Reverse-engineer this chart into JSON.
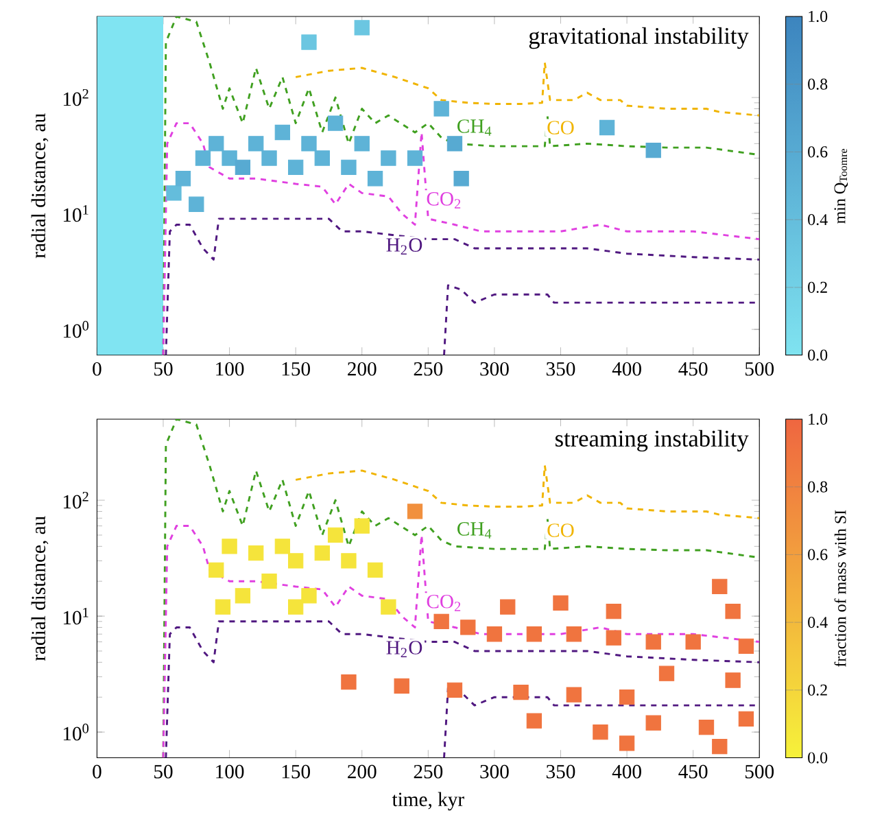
{
  "chart_data": [
    {
      "type": "line",
      "title": "gravitational instability",
      "ylabel": "radial distance, au",
      "clabel": "min Q$_{Toomre}$",
      "log": "y",
      "line_style": "dashed",
      "marker": "none",
      "xlim": [
        0,
        500
      ],
      "xticks": [
        0,
        50,
        100,
        150,
        200,
        250,
        300,
        350,
        400,
        450,
        500
      ],
      "ylim": [
        0.6,
        500
      ],
      "yticks": [
        {
          "value": 1,
          "label": "10$^{0}$"
        },
        {
          "value": 10,
          "label": "10$^{1}$"
        },
        {
          "value": 100,
          "label": "10$^{2}$"
        }
      ],
      "clim": [
        0,
        1
      ],
      "cticks": [
        {
          "value": 0,
          "label": "0.0"
        },
        {
          "value": 0.2,
          "label": "0.2"
        },
        {
          "value": 0.4,
          "label": "0.4"
        },
        {
          "value": 0.6,
          "label": "0.6"
        },
        {
          "value": 0.8,
          "label": "0.8"
        },
        {
          "value": 1,
          "label": "1.0"
        }
      ],
      "bands": [
        {
          "axis": "x",
          "from": 0,
          "to": 50,
          "color": "#80e4f2"
        }
      ],
      "series": [
        {
          "type": "scatter",
          "marker": "square",
          "x": [
            58,
            65,
            75,
            80,
            90,
            100,
            110,
            120,
            130,
            140,
            150,
            160,
            170,
            180,
            190,
            200,
            210,
            220,
            160,
            200,
            240,
            260,
            270,
            275,
            420,
            385
          ],
          "values": [
            15,
            20,
            12,
            30,
            40,
            30,
            25,
            40,
            30,
            50,
            25,
            40,
            30,
            60,
            25,
            40,
            20,
            30,
            300,
            400,
            30,
            80,
            40,
            20,
            35,
            55
          ],
          "cvalues": [
            0.4,
            0.5,
            0.5,
            0.5,
            0.5,
            0.5,
            0.6,
            0.5,
            0.5,
            0.5,
            0.5,
            0.5,
            0.5,
            0.5,
            0.5,
            0.5,
            0.5,
            0.5,
            0.3,
            0.3,
            0.5,
            0.5,
            0.6,
            0.6,
            0.6,
            0.5
          ],
          "colors": [
            "#64bddc",
            "#5eb3d7",
            "#5eb3d7",
            "#5eb3d7",
            "#5eb3d7",
            "#5eb3d7",
            "#57aad2",
            "#5eb3d7",
            "#5eb3d7",
            "#5eb3d7",
            "#5eb3d7",
            "#5eb3d7",
            "#5eb3d7",
            "#5eb3d7",
            "#5eb3d7",
            "#5eb3d7",
            "#5eb3d7",
            "#5eb3d7",
            "#6bc6e1",
            "#6bc6e1",
            "#5eb3d7",
            "#5eb3d7",
            "#57aad2",
            "#57aad2",
            "#57aad2",
            "#5eb3d7"
          ]
        },
        {
          "name": "CH$_{4}$",
          "color": "#40a020",
          "x": [
            50,
            52,
            60,
            75,
            85,
            95,
            100,
            110,
            120,
            130,
            140,
            150,
            160,
            170,
            180,
            190,
            200,
            210,
            220,
            240,
            250,
            260,
            270,
            300,
            338,
            340,
            342,
            370,
            400,
            430,
            460,
            500
          ],
          "values": [
            0.6,
            300,
            500,
            450,
            200,
            80,
            120,
            60,
            180,
            80,
            150,
            60,
            120,
            50,
            100,
            40,
            80,
            60,
            70,
            50,
            60,
            45,
            40,
            38,
            38,
            70,
            38,
            40,
            38,
            37,
            37,
            32
          ]
        },
        {
          "name": "CO",
          "color": "#f0b400",
          "x": [
            150,
            175,
            200,
            225,
            250,
            260,
            280,
            300,
            320,
            336,
            338,
            342,
            360,
            370,
            380,
            395,
            400,
            430,
            460,
            470,
            500
          ],
          "values": [
            150,
            170,
            180,
            150,
            120,
            95,
            90,
            88,
            88,
            90,
            200,
            95,
            95,
            110,
            95,
            95,
            85,
            80,
            80,
            75,
            70
          ]
        },
        {
          "name": "CO$_{2}$",
          "color": "#e040e0",
          "x": [
            50,
            53,
            60,
            70,
            80,
            85,
            100,
            120,
            150,
            170,
            180,
            190,
            200,
            220,
            230,
            240,
            245,
            250,
            270,
            290,
            300,
            350,
            380,
            400,
            450,
            500
          ],
          "values": [
            0.6,
            40,
            60,
            60,
            40,
            25,
            20,
            20,
            18,
            17,
            12,
            18,
            15,
            14,
            10,
            8,
            50,
            9,
            8,
            7,
            7,
            7,
            8,
            7,
            7,
            6
          ]
        },
        {
          "name": "H$_{2}$O",
          "color": "#501880",
          "x": [
            52,
            55,
            60,
            70,
            80,
            88,
            92,
            110,
            150,
            175,
            185,
            200,
            250,
            270,
            285,
            300,
            370,
            400,
            450,
            500
          ],
          "values": [
            0.6,
            7,
            8,
            8,
            5,
            4,
            9,
            9,
            9,
            9,
            7,
            7,
            6,
            6,
            5,
            5,
            5,
            4.5,
            4.2,
            4
          ]
        },
        {
          "color": "#501880",
          "x": [
            262,
            265,
            275,
            285,
            300,
            340,
            345,
            400,
            500
          ],
          "values": [
            0.6,
            2.4,
            2.2,
            1.7,
            2.0,
            2.0,
            1.7,
            1.7,
            1.7
          ]
        }
      ]
    },
    {
      "type": "line",
      "title": "streaming instability",
      "xlabel": "time, kyr",
      "ylabel": "radial distance, au",
      "clabel": "fraction of mass with SI",
      "log": "y",
      "line_style": "dashed",
      "marker": "none",
      "xlim": [
        0,
        500
      ],
      "xticks": [
        0,
        50,
        100,
        150,
        200,
        250,
        300,
        350,
        400,
        450,
        500
      ],
      "ylim": [
        0.6,
        500
      ],
      "yticks": [
        {
          "value": 1,
          "label": "10$^{0}$"
        },
        {
          "value": 10,
          "label": "10$^{1}$"
        },
        {
          "value": 100,
          "label": "10$^{2}$"
        }
      ],
      "clim": [
        0,
        1
      ],
      "cticks": [
        {
          "value": 0,
          "label": "0.0"
        },
        {
          "value": 0.2,
          "label": "0.2"
        },
        {
          "value": 0.4,
          "label": "0.4"
        },
        {
          "value": 0.6,
          "label": "0.6"
        },
        {
          "value": 0.8,
          "label": "0.8"
        },
        {
          "value": 1,
          "label": "1.0"
        }
      ],
      "series": [
        {
          "type": "scatter",
          "marker": "square",
          "x": [
            90,
            100,
            110,
            120,
            130,
            140,
            150,
            160,
            170,
            180,
            190,
            200,
            210,
            220,
            95,
            150,
            240,
            260,
            280,
            300,
            330,
            360,
            390,
            420,
            450,
            490,
            310,
            350,
            390,
            470,
            480,
            190,
            230,
            270,
            320,
            360,
            400,
            430,
            480,
            380,
            420,
            460,
            490,
            330,
            400,
            470
          ],
          "values": [
            25,
            40,
            15,
            35,
            20,
            40,
            30,
            15,
            35,
            50,
            30,
            60,
            25,
            12,
            12,
            12,
            80,
            9,
            8,
            7,
            7,
            7,
            6.5,
            6,
            6,
            5.5,
            12,
            13,
            11,
            18,
            11,
            2.7,
            2.5,
            2.3,
            2.2,
            2.1,
            2.0,
            3.2,
            2.8,
            1.0,
            1.2,
            1.1,
            1.3,
            1.25,
            0.8,
            0.75
          ],
          "cvalues": [
            0.1,
            0.1,
            0.1,
            0.1,
            0.1,
            0.1,
            0.1,
            0.1,
            0.1,
            0.1,
            0.1,
            0.1,
            0.1,
            0.1,
            0.1,
            0.1,
            0.7,
            0.9,
            0.9,
            0.9,
            0.9,
            0.9,
            0.9,
            0.9,
            0.9,
            0.9,
            0.9,
            0.9,
            0.9,
            0.9,
            0.9,
            0.9,
            0.9,
            0.9,
            0.9,
            0.9,
            0.9,
            0.9,
            0.9,
            0.9,
            0.9,
            0.9,
            0.9,
            0.9,
            0.9,
            0.9
          ],
          "colors": [
            "#f5e43b",
            "#f5e43b",
            "#f5e43b",
            "#f5e43b",
            "#f5e43b",
            "#f5e43b",
            "#f5e43b",
            "#f5e43b",
            "#f5e43b",
            "#f5e43b",
            "#f5e43b",
            "#f5e43b",
            "#f5e43b",
            "#f5e43b",
            "#f5e43b",
            "#f5e43b",
            "#f1903e",
            "#f0743f",
            "#f0743f",
            "#f0743f",
            "#f0743f",
            "#f0743f",
            "#f0743f",
            "#f0743f",
            "#f0743f",
            "#f0743f",
            "#f0743f",
            "#f0743f",
            "#f0743f",
            "#f0743f",
            "#f0743f",
            "#f0743f",
            "#f0743f",
            "#f0743f",
            "#f0743f",
            "#f0743f",
            "#f0743f",
            "#f0743f",
            "#f0743f",
            "#f0743f",
            "#f0743f",
            "#f0743f",
            "#f0743f",
            "#f0743f",
            "#f0743f",
            "#f0743f"
          ]
        },
        {
          "name": "CH$_{4}$",
          "color": "#40a020",
          "x": [
            50,
            52,
            60,
            75,
            85,
            95,
            100,
            110,
            120,
            130,
            140,
            150,
            160,
            170,
            180,
            190,
            200,
            210,
            220,
            240,
            250,
            260,
            270,
            300,
            338,
            340,
            342,
            370,
            400,
            430,
            460,
            500
          ],
          "values": [
            0.6,
            300,
            500,
            450,
            200,
            80,
            120,
            60,
            180,
            80,
            150,
            60,
            120,
            50,
            100,
            40,
            80,
            60,
            70,
            50,
            60,
            45,
            40,
            38,
            38,
            70,
            38,
            40,
            38,
            37,
            37,
            32
          ]
        },
        {
          "name": "CO",
          "color": "#f0b400",
          "x": [
            150,
            175,
            200,
            225,
            250,
            260,
            280,
            300,
            320,
            336,
            338,
            342,
            360,
            370,
            380,
            395,
            400,
            430,
            460,
            470,
            500
          ],
          "values": [
            150,
            170,
            180,
            150,
            120,
            95,
            90,
            88,
            88,
            90,
            200,
            95,
            95,
            110,
            95,
            95,
            85,
            80,
            80,
            75,
            70
          ]
        },
        {
          "name": "CO$_{2}$",
          "color": "#e040e0",
          "x": [
            50,
            53,
            60,
            70,
            80,
            85,
            100,
            120,
            150,
            170,
            180,
            190,
            200,
            220,
            230,
            240,
            245,
            250,
            270,
            290,
            300,
            350,
            380,
            400,
            450,
            500
          ],
          "values": [
            0.6,
            40,
            60,
            60,
            40,
            25,
            20,
            20,
            18,
            17,
            12,
            18,
            15,
            14,
            10,
            8,
            50,
            9,
            8,
            7,
            7,
            7,
            8,
            7,
            7,
            6
          ]
        },
        {
          "name": "H$_{2}$O",
          "color": "#501880",
          "x": [
            52,
            55,
            60,
            70,
            80,
            88,
            92,
            110,
            150,
            175,
            185,
            200,
            250,
            270,
            285,
            300,
            370,
            400,
            450,
            500
          ],
          "values": [
            0.6,
            7,
            8,
            8,
            5,
            4,
            9,
            9,
            9,
            9,
            7,
            7,
            6,
            6,
            5,
            5,
            5,
            4.5,
            4.2,
            4
          ]
        },
        {
          "color": "#501880",
          "x": [
            262,
            265,
            275,
            285,
            300,
            340,
            345,
            400,
            500
          ],
          "values": [
            0.6,
            2.4,
            2.2,
            1.7,
            2.0,
            2.0,
            1.7,
            1.7,
            1.7
          ]
        }
      ]
    }
  ]
}
